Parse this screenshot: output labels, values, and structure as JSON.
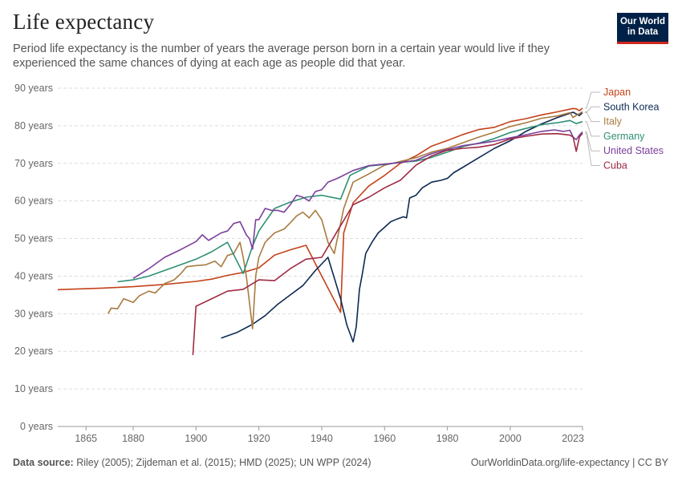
{
  "header": {
    "title": "Life expectancy",
    "subtitle": "Period life expectancy is the number of years the average person born in a certain year would live if they experienced the same chances of dying at each age as people did that year.",
    "logo_line1": "Our World",
    "logo_line2": "in Data"
  },
  "footer": {
    "source_label": "Data source:",
    "source_text": "Riley (2005); Zijdeman et al. (2015); HMD (2025); UN WPP (2024)",
    "url": "OurWorldinData.org/life-expectancy | CC BY"
  },
  "colors": {
    "Japan": "#c4421a",
    "South Korea": "#0d2a54",
    "Italy": "#a87b40",
    "Germany": "#2e8f74",
    "United States": "#7b3f9c",
    "Cuba": "#9e2a44"
  },
  "chart_data": {
    "type": "line",
    "title": "Life expectancy",
    "xlabel": "",
    "ylabel": "",
    "xlim": [
      1856,
      2023
    ],
    "ylim": [
      0,
      90
    ],
    "x_ticks": [
      1865,
      1880,
      1900,
      1920,
      1940,
      1960,
      1980,
      2000,
      2023
    ],
    "y_ticks": [
      0,
      10,
      20,
      30,
      40,
      50,
      60,
      70,
      80,
      90
    ],
    "y_tick_labels": [
      "0 years",
      "10 years",
      "20 years",
      "30 years",
      "40 years",
      "50 years",
      "60 years",
      "70 years",
      "80 years",
      "90 years"
    ],
    "grid": "horizontal dashed",
    "legend": "right",
    "series": [
      {
        "name": "Japan",
        "points": [
          [
            1856,
            36.4
          ],
          [
            1870,
            36.8
          ],
          [
            1880,
            37.2
          ],
          [
            1890,
            37.8
          ],
          [
            1900,
            38.6
          ],
          [
            1905,
            39.2
          ],
          [
            1910,
            40.2
          ],
          [
            1915,
            41
          ],
          [
            1920,
            42.2
          ],
          [
            1925,
            45.6
          ],
          [
            1930,
            47
          ],
          [
            1935,
            48.2
          ],
          [
            1940,
            40
          ],
          [
            1946,
            30.4
          ],
          [
            1947,
            51.5
          ],
          [
            1950,
            59.5
          ],
          [
            1955,
            64
          ],
          [
            1960,
            66.8
          ],
          [
            1965,
            70
          ],
          [
            1970,
            72
          ],
          [
            1975,
            74.6
          ],
          [
            1980,
            76.1
          ],
          [
            1985,
            77.7
          ],
          [
            1990,
            79
          ],
          [
            1995,
            79.6
          ],
          [
            2000,
            81.1
          ],
          [
            2005,
            81.9
          ],
          [
            2010,
            82.9
          ],
          [
            2015,
            83.7
          ],
          [
            2020,
            84.6
          ],
          [
            2021,
            84.5
          ],
          [
            2022,
            84
          ],
          [
            2023,
            84.7
          ]
        ]
      },
      {
        "name": "South Korea",
        "points": [
          [
            1908,
            23.5
          ],
          [
            1913,
            25
          ],
          [
            1918,
            27.2
          ],
          [
            1922,
            29.5
          ],
          [
            1926,
            32.5
          ],
          [
            1930,
            35
          ],
          [
            1934,
            37.5
          ],
          [
            1938,
            41.5
          ],
          [
            1942,
            45
          ],
          [
            1946,
            34
          ],
          [
            1948,
            27
          ],
          [
            1950,
            22.5
          ],
          [
            1951,
            26.5
          ],
          [
            1952,
            36.5
          ],
          [
            1953,
            41
          ],
          [
            1954,
            46
          ],
          [
            1956,
            49
          ],
          [
            1958,
            51.5
          ],
          [
            1960,
            53
          ],
          [
            1962,
            54.5
          ],
          [
            1964,
            55.2
          ],
          [
            1966,
            55.8
          ],
          [
            1967,
            55.5
          ],
          [
            1968,
            60.8
          ],
          [
            1970,
            61.5
          ],
          [
            1972,
            63.5
          ],
          [
            1975,
            65
          ],
          [
            1978,
            65.5
          ],
          [
            1980,
            66
          ],
          [
            1982,
            67.5
          ],
          [
            1985,
            69
          ],
          [
            1988,
            70.5
          ],
          [
            1990,
            71.5
          ],
          [
            1995,
            74
          ],
          [
            2000,
            76
          ],
          [
            2005,
            78.5
          ],
          [
            2010,
            80.5
          ],
          [
            2015,
            82.2
          ],
          [
            2020,
            83.6
          ],
          [
            2022,
            82.7
          ],
          [
            2023,
            83.5
          ]
        ]
      },
      {
        "name": "Italy",
        "points": [
          [
            1872,
            30
          ],
          [
            1873,
            31.5
          ],
          [
            1875,
            31.3
          ],
          [
            1877,
            34
          ],
          [
            1880,
            33
          ],
          [
            1882,
            34.8
          ],
          [
            1885,
            36
          ],
          [
            1887,
            35.5
          ],
          [
            1890,
            38
          ],
          [
            1893,
            39
          ],
          [
            1895,
            40.5
          ],
          [
            1897,
            42.5
          ],
          [
            1900,
            42.8
          ],
          [
            1903,
            43
          ],
          [
            1906,
            44
          ],
          [
            1908,
            42.5
          ],
          [
            1910,
            45.5
          ],
          [
            1912,
            46
          ],
          [
            1914,
            49
          ],
          [
            1915,
            45
          ],
          [
            1916,
            40
          ],
          [
            1917,
            33
          ],
          [
            1918,
            26
          ],
          [
            1919,
            40
          ],
          [
            1920,
            45
          ],
          [
            1922,
            49
          ],
          [
            1925,
            51.5
          ],
          [
            1928,
            52.5
          ],
          [
            1930,
            54.2
          ],
          [
            1932,
            56
          ],
          [
            1934,
            57
          ],
          [
            1936,
            55.5
          ],
          [
            1938,
            57.5
          ],
          [
            1940,
            55
          ],
          [
            1942,
            49
          ],
          [
            1944,
            46
          ],
          [
            1945,
            50
          ],
          [
            1947,
            58
          ],
          [
            1950,
            65
          ],
          [
            1955,
            67.2
          ],
          [
            1960,
            69.5
          ],
          [
            1965,
            70.5
          ],
          [
            1970,
            71.5
          ],
          [
            1975,
            73
          ],
          [
            1980,
            74
          ],
          [
            1985,
            75.5
          ],
          [
            1990,
            77
          ],
          [
            1995,
            78.3
          ],
          [
            2000,
            79.8
          ],
          [
            2005,
            80.8
          ],
          [
            2010,
            82
          ],
          [
            2015,
            82.6
          ],
          [
            2019,
            83.5
          ],
          [
            2020,
            82.2
          ],
          [
            2021,
            82.8
          ],
          [
            2023,
            83.7
          ]
        ]
      },
      {
        "name": "Germany",
        "points": [
          [
            1875,
            38.5
          ],
          [
            1880,
            39
          ],
          [
            1885,
            40
          ],
          [
            1890,
            41.5
          ],
          [
            1895,
            43
          ],
          [
            1900,
            44.5
          ],
          [
            1905,
            46.5
          ],
          [
            1910,
            49
          ],
          [
            1915,
            40.7
          ],
          [
            1918,
            48
          ],
          [
            1920,
            52
          ],
          [
            1925,
            58
          ],
          [
            1930,
            59.7
          ],
          [
            1935,
            61
          ],
          [
            1940,
            61.5
          ],
          [
            1946,
            60.5
          ],
          [
            1949,
            66.8
          ],
          [
            1955,
            69.3
          ],
          [
            1960,
            69.7
          ],
          [
            1965,
            70.3
          ],
          [
            1970,
            70.6
          ],
          [
            1975,
            71.6
          ],
          [
            1980,
            73
          ],
          [
            1985,
            74.5
          ],
          [
            1990,
            75.4
          ],
          [
            1995,
            76.6
          ],
          [
            2000,
            78.2
          ],
          [
            2005,
            79.3
          ],
          [
            2010,
            80.3
          ],
          [
            2015,
            80.8
          ],
          [
            2019,
            81.4
          ],
          [
            2021,
            80.6
          ],
          [
            2023,
            81.1
          ]
        ]
      },
      {
        "name": "United States",
        "points": [
          [
            1880,
            39.4
          ],
          [
            1885,
            42
          ],
          [
            1890,
            45
          ],
          [
            1895,
            47
          ],
          [
            1900,
            49.2
          ],
          [
            1902,
            51
          ],
          [
            1904,
            49.5
          ],
          [
            1906,
            50.5
          ],
          [
            1908,
            51.5
          ],
          [
            1910,
            52
          ],
          [
            1912,
            54
          ],
          [
            1914,
            54.5
          ],
          [
            1916,
            51
          ],
          [
            1917,
            50
          ],
          [
            1918,
            47.2
          ],
          [
            1919,
            55
          ],
          [
            1920,
            55
          ],
          [
            1922,
            58
          ],
          [
            1924,
            57.5
          ],
          [
            1926,
            57.5
          ],
          [
            1928,
            57
          ],
          [
            1930,
            59
          ],
          [
            1932,
            61.5
          ],
          [
            1934,
            61
          ],
          [
            1936,
            60
          ],
          [
            1938,
            62.5
          ],
          [
            1940,
            63
          ],
          [
            1942,
            65
          ],
          [
            1945,
            66
          ],
          [
            1950,
            68.1
          ],
          [
            1955,
            69.4
          ],
          [
            1960,
            69.8
          ],
          [
            1965,
            70.2
          ],
          [
            1970,
            70.8
          ],
          [
            1975,
            72.6
          ],
          [
            1980,
            73.7
          ],
          [
            1985,
            74.7
          ],
          [
            1990,
            75.3
          ],
          [
            1995,
            75.9
          ],
          [
            2000,
            76.8
          ],
          [
            2005,
            77.6
          ],
          [
            2010,
            78.5
          ],
          [
            2014,
            78.9
          ],
          [
            2017,
            78.5
          ],
          [
            2019,
            78.8
          ],
          [
            2020,
            77
          ],
          [
            2021,
            76.3
          ],
          [
            2022,
            77.5
          ],
          [
            2023,
            78.4
          ]
        ]
      },
      {
        "name": "Cuba",
        "points": [
          [
            1899,
            19
          ],
          [
            1900,
            32
          ],
          [
            1905,
            34
          ],
          [
            1910,
            36
          ],
          [
            1915,
            36.5
          ],
          [
            1920,
            39
          ],
          [
            1925,
            38.8
          ],
          [
            1930,
            42
          ],
          [
            1935,
            44.5
          ],
          [
            1940,
            45
          ],
          [
            1945,
            52
          ],
          [
            1950,
            59
          ],
          [
            1955,
            61
          ],
          [
            1960,
            63.5
          ],
          [
            1965,
            65.5
          ],
          [
            1970,
            69.5
          ],
          [
            1975,
            72
          ],
          [
            1980,
            73.5
          ],
          [
            1985,
            74
          ],
          [
            1990,
            74.3
          ],
          [
            1995,
            75
          ],
          [
            2000,
            76.5
          ],
          [
            2005,
            77.2
          ],
          [
            2010,
            77.8
          ],
          [
            2015,
            77.9
          ],
          [
            2019,
            77.5
          ],
          [
            2020,
            77
          ],
          [
            2021,
            73.2
          ],
          [
            2022,
            77
          ],
          [
            2023,
            78
          ]
        ]
      }
    ],
    "legend_order": [
      "Japan",
      "South Korea",
      "Italy",
      "Germany",
      "United States",
      "Cuba"
    ]
  }
}
